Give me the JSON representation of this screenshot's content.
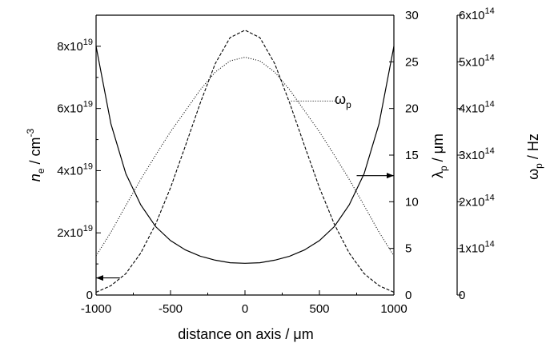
{
  "chart_data": {
    "type": "line",
    "xlabel": "distance on axis / μm",
    "x_ticks": [
      "-1000",
      "-500",
      "0",
      "500",
      "1000"
    ],
    "x_tick_values": [
      -1000,
      -500,
      0,
      500,
      1000
    ],
    "xlim": [
      -1000,
      1000
    ],
    "axes": [
      {
        "id": "ne",
        "position": "left",
        "label_italic": "n",
        "label_sub": "e",
        "label_rest": " / cm",
        "label_sup": "-3",
        "ylim": [
          0,
          9e+19
        ],
        "ticks": [
          {
            "value": 0,
            "mantissa": "0",
            "exp": ""
          },
          {
            "value": 2e+19,
            "mantissa": "2x10",
            "exp": "19"
          },
          {
            "value": 4e+19,
            "mantissa": "4x10",
            "exp": "19"
          },
          {
            "value": 6e+19,
            "mantissa": "6x10",
            "exp": "19"
          },
          {
            "value": 8e+19,
            "mantissa": "8x10",
            "exp": "19"
          }
        ]
      },
      {
        "id": "lambda",
        "position": "right",
        "label_main": "λ",
        "label_sub": "p",
        "label_rest": " / μm",
        "ylim": [
          0,
          30
        ],
        "ticks": [
          "0",
          "5",
          "10",
          "15",
          "20",
          "25",
          "30"
        ],
        "tick_values": [
          0,
          5,
          10,
          15,
          20,
          25,
          30
        ]
      },
      {
        "id": "omega",
        "position": "right-offset",
        "label_main": "ω",
        "label_sub": "p",
        "label_rest": " / Hz",
        "ylim": [
          0,
          600000000000000.0
        ],
        "ticks": [
          {
            "value": 0,
            "mantissa": "0",
            "exp": ""
          },
          {
            "value": 100000000000000.0,
            "mantissa": "1x10",
            "exp": "14"
          },
          {
            "value": 200000000000000.0,
            "mantissa": "2x10",
            "exp": "14"
          },
          {
            "value": 300000000000000.0,
            "mantissa": "3x10",
            "exp": "14"
          },
          {
            "value": 400000000000000.0,
            "mantissa": "4x10",
            "exp": "14"
          },
          {
            "value": 500000000000000.0,
            "mantissa": "5x10",
            "exp": "14"
          },
          {
            "value": 600000000000000.0,
            "mantissa": "6x10",
            "exp": "14"
          }
        ]
      }
    ],
    "series": [
      {
        "id": "density",
        "axis": "ne",
        "style": "solid",
        "x": [
          -1000,
          -900,
          -800,
          -700,
          -600,
          -500,
          -400,
          -300,
          -200,
          -100,
          0,
          100,
          200,
          300,
          400,
          500,
          600,
          700,
          800,
          900,
          1000
        ],
        "y": [
          8e+19,
          5.5e+19,
          3.9e+19,
          2.9e+19,
          2.2e+19,
          1.75e+19,
          1.45e+19,
          1.25e+19,
          1.12e+19,
          1.04e+19,
          1.02e+19,
          1.04e+19,
          1.12e+19,
          1.25e+19,
          1.45e+19,
          1.75e+19,
          2.2e+19,
          2.9e+19,
          3.9e+19,
          5.5e+19,
          8e+19
        ]
      },
      {
        "id": "lambda_p",
        "axis": "lambda",
        "style": "dashed",
        "x": [
          -1000,
          -900,
          -800,
          -700,
          -600,
          -500,
          -400,
          -300,
          -200,
          -100,
          0,
          100,
          200,
          300,
          400,
          500,
          600,
          700,
          800,
          900,
          1000
        ],
        "y": [
          0.3,
          1.0,
          2.3,
          4.5,
          7.6,
          11.5,
          16.0,
          20.6,
          24.8,
          27.6,
          28.4,
          27.6,
          24.8,
          20.6,
          16.0,
          11.5,
          7.6,
          4.5,
          2.3,
          1.0,
          0.3
        ]
      },
      {
        "id": "omega_p",
        "name": "ω",
        "name_sub": "p",
        "axis": "omega",
        "style": "dotted",
        "x": [
          -1000,
          -900,
          -800,
          -700,
          -600,
          -500,
          -400,
          -300,
          -200,
          -100,
          0,
          100,
          200,
          300,
          400,
          500,
          600,
          700,
          800,
          900,
          1000
        ],
        "y": [
          84000000000000.0,
          135000000000000.0,
          192000000000000.0,
          248000000000000.0,
          300000000000000.0,
          350000000000000.0,
          395000000000000.0,
          440000000000000.0,
          478000000000000.0,
          502000000000000.0,
          510000000000000.0,
          502000000000000.0,
          478000000000000.0,
          440000000000000.0,
          395000000000000.0,
          350000000000000.0,
          300000000000000.0,
          248000000000000.0,
          192000000000000.0,
          135000000000000.0,
          84000000000000.0
        ]
      }
    ],
    "annotations": [
      {
        "type": "arrow",
        "direction": "left",
        "points_to": "ne",
        "x_from": -840,
        "x_to": -1000,
        "y": 5.5e+18
      },
      {
        "type": "arrow",
        "direction": "right",
        "points_to": "lambda",
        "x_from": 750,
        "x_to": 1000,
        "y": 12.8
      },
      {
        "type": "label_leader",
        "series": "omega_p",
        "x_from": 310,
        "x_to": 610,
        "y_value_lambda": 20.8
      }
    ]
  }
}
